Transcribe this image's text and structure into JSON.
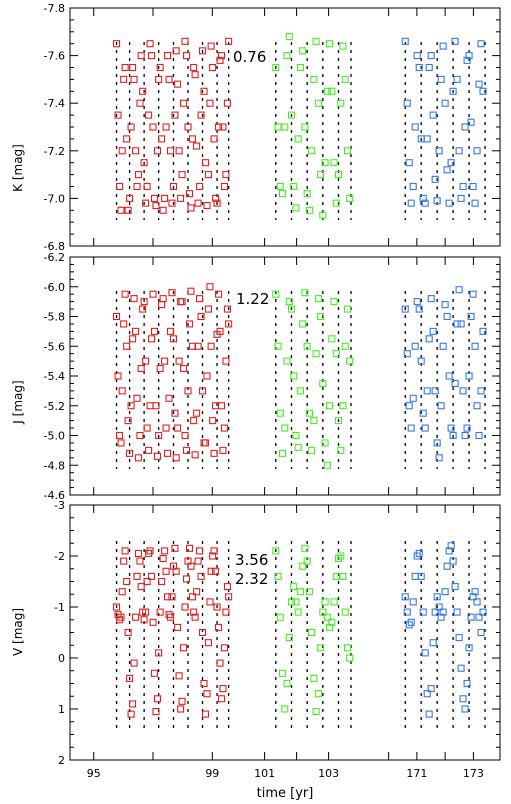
{
  "chart_data": [
    {
      "type": "scatter",
      "ylabel": "K [mag]",
      "ylim": [
        -6.8,
        -7.8
      ],
      "inverted_y": true,
      "yticks": [
        "-7.8",
        "-7.6",
        "-7.4",
        "-7.2",
        "-7.0",
        "-6.8"
      ],
      "annotations": [
        "0.76"
      ],
      "series": [
        {
          "color": "#e02020",
          "x": [
            95.77,
            95.82,
            95.87,
            95.92,
            95.96,
            96.01,
            96.06,
            96.11,
            96.16,
            96.21,
            96.26,
            96.31,
            96.36,
            96.41,
            96.46,
            96.51,
            96.56,
            96.6,
            96.65,
            96.7,
            96.75,
            96.8,
            96.85,
            96.9,
            96.95,
            97.0,
            97.05,
            97.1,
            97.15,
            97.19,
            97.24,
            97.29,
            97.34,
            97.39,
            97.44,
            97.49,
            97.54,
            97.59,
            97.64,
            97.69,
            97.74,
            97.78,
            97.83,
            97.88,
            97.93,
            97.98,
            98.03,
            98.08,
            98.13,
            98.18,
            98.23,
            98.28,
            98.33,
            98.37,
            98.42,
            98.47,
            98.52,
            98.57,
            98.62,
            98.67,
            98.72,
            98.77,
            98.82,
            98.87,
            98.92,
            98.96,
            99.01,
            99.06,
            99.11,
            99.16,
            99.21,
            99.26,
            99.31,
            99.36,
            99.41,
            99.46,
            99.51,
            99.55
          ],
          "y": [
            -7.65,
            -7.35,
            -7.05,
            -6.95,
            -7.2,
            -7.5,
            -7.55,
            -7.25,
            -6.95,
            -7.0,
            -7.3,
            -7.55,
            -7.5,
            -7.2,
            -7.05,
            -7.1,
            -7.4,
            -7.6,
            -7.45,
            -7.15,
            -6.98,
            -7.05,
            -7.35,
            -7.65,
            -7.6,
            -7.3,
            -7.0,
            -6.97,
            -7.2,
            -7.5,
            -7.55,
            -7.25,
            -6.95,
            -7.0,
            -7.3,
            -7.6,
            -7.5,
            -7.2,
            -6.98,
            -7.05,
            -7.35,
            -7.62,
            -7.48,
            -7.2,
            -7.0,
            -7.1,
            -7.4,
            -7.66,
            -7.6,
            -7.3,
            -7.02,
            -6.96,
            -7.25,
            -7.55,
            -7.52,
            -7.22,
            -6.98,
            -7.05,
            -7.35,
            -7.62,
            -7.45,
            -7.15,
            -6.97,
            -7.1,
            -7.4,
            -7.64,
            -7.55,
            -7.25,
            -7.0,
            -6.98,
            -7.3,
            -7.58,
            -7.6,
            -7.3,
            -7.05,
            -7.1,
            -7.4,
            -7.66
          ]
        },
        {
          "color": "#44ee22",
          "x": [
            101.35,
            101.42,
            101.49,
            101.56,
            101.63,
            101.7,
            101.77,
            101.84,
            101.91,
            101.98,
            102.05,
            102.12,
            102.19,
            102.26,
            102.33,
            102.4,
            102.47,
            102.54,
            102.61,
            102.68,
            102.75,
            102.82,
            102.89,
            102.96,
            103.03,
            103.1,
            103.17,
            103.24,
            103.31,
            103.38,
            103.45,
            103.52,
            103.59,
            103.66
          ],
          "y": [
            -7.55,
            -7.3,
            -7.05,
            -7.02,
            -7.3,
            -7.6,
            -7.68,
            -7.35,
            -7.05,
            -6.96,
            -7.25,
            -7.55,
            -7.62,
            -7.3,
            -7.02,
            -6.95,
            -7.2,
            -7.5,
            -7.66,
            -7.4,
            -7.1,
            -6.93,
            -7.15,
            -7.45,
            -7.65,
            -7.45,
            -7.15,
            -6.98,
            -7.1,
            -7.4,
            -7.64,
            -7.5,
            -7.2,
            -7.0
          ]
        },
        {
          "color": "#3377ee",
          "x": [
            105.65,
            105.71,
            105.77,
            105.83,
            105.89,
            105.95,
            106.01,
            106.07,
            106.13,
            106.19,
            106.25,
            106.31,
            106.37,
            106.43,
            106.49,
            106.55,
            106.61,
            106.67,
            106.73,
            106.79,
            106.85,
            106.91,
            106.97,
            107.03,
            107.09,
            107.15,
            107.21,
            107.27,
            107.33,
            107.39,
            107.45,
            107.51,
            107.57,
            107.63,
            107.69,
            107.75,
            107.81,
            107.87,
            107.93,
            107.99
          ],
          "y": [
            -7.66,
            -7.4,
            -7.15,
            -6.98,
            -7.05,
            -7.3,
            -7.6,
            -7.55,
            -7.25,
            -7.0,
            -6.98,
            -7.25,
            -7.55,
            -7.6,
            -7.35,
            -7.08,
            -6.99,
            -7.2,
            -7.5,
            -7.64,
            -7.4,
            -7.12,
            -6.98,
            -7.15,
            -7.45,
            -7.66,
            -7.5,
            -7.2,
            -7.0,
            -7.05,
            -7.3,
            -7.58,
            -7.6,
            -7.32,
            -7.05,
            -6.98,
            -7.2,
            -7.48,
            -7.65,
            -7.45
          ]
        }
      ]
    },
    {
      "type": "scatter",
      "ylabel": "J [mag]",
      "ylim": [
        -4.6,
        -6.2
      ],
      "inverted_y": true,
      "yticks": [
        "-6.2",
        "-6.0",
        "-5.8",
        "-5.6",
        "-5.4",
        "-5.2",
        "-5.0",
        "-4.8",
        "-4.6"
      ],
      "annotations": [
        "1.22"
      ],
      "series": [
        {
          "color": "#e02020",
          "x": [
            95.77,
            95.82,
            95.87,
            95.92,
            95.96,
            96.01,
            96.06,
            96.11,
            96.16,
            96.21,
            96.26,
            96.31,
            96.36,
            96.41,
            96.46,
            96.51,
            96.56,
            96.6,
            96.65,
            96.7,
            96.75,
            96.8,
            96.85,
            96.9,
            96.95,
            97.0,
            97.05,
            97.1,
            97.15,
            97.19,
            97.24,
            97.29,
            97.34,
            97.39,
            97.44,
            97.49,
            97.54,
            97.59,
            97.64,
            97.69,
            97.74,
            97.78,
            97.83,
            97.88,
            97.93,
            97.98,
            98.03,
            98.08,
            98.13,
            98.18,
            98.23,
            98.28,
            98.33,
            98.37,
            98.42,
            98.47,
            98.52,
            98.57,
            98.62,
            98.67,
            98.72,
            98.77,
            98.82,
            98.87,
            98.92,
            98.96,
            99.01,
            99.06,
            99.11,
            99.16,
            99.21,
            99.26,
            99.31,
            99.36,
            99.41,
            99.46,
            99.51,
            99.55
          ],
          "y": [
            -5.8,
            -5.4,
            -5.0,
            -4.95,
            -5.3,
            -5.75,
            -5.95,
            -5.6,
            -5.1,
            -4.88,
            -5.2,
            -5.65,
            -5.92,
            -5.7,
            -5.25,
            -4.85,
            -5.0,
            -5.45,
            -5.85,
            -5.9,
            -5.5,
            -5.05,
            -4.9,
            -5.2,
            -5.65,
            -5.95,
            -5.7,
            -5.2,
            -4.86,
            -5.0,
            -5.45,
            -5.88,
            -5.92,
            -5.5,
            -5.05,
            -4.88,
            -5.25,
            -5.7,
            -5.96,
            -5.65,
            -5.15,
            -4.85,
            -5.05,
            -5.5,
            -5.9,
            -5.9,
            -5.45,
            -5.0,
            -4.9,
            -5.3,
            -5.75,
            -5.97,
            -5.6,
            -5.1,
            -4.87,
            -5.15,
            -5.6,
            -5.92,
            -5.8,
            -5.3,
            -4.95,
            -4.95,
            -5.4,
            -5.85,
            -6.0,
            -5.6,
            -5.1,
            -4.88,
            -5.2,
            -5.68,
            -5.95,
            -5.7,
            -5.2,
            -4.9,
            -5.05,
            -5.5,
            -5.85,
            -5.75
          ]
        },
        {
          "color": "#44ee22",
          "x": [
            101.35,
            101.42,
            101.49,
            101.56,
            101.63,
            101.7,
            101.77,
            101.84,
            101.91,
            101.98,
            102.05,
            102.12,
            102.19,
            102.26,
            102.33,
            102.4,
            102.47,
            102.54,
            102.61,
            102.68,
            102.75,
            102.82,
            102.89,
            102.96,
            103.03,
            103.1,
            103.17,
            103.24,
            103.31,
            103.38,
            103.45,
            103.52,
            103.59,
            103.66
          ],
          "y": [
            -5.95,
            -5.6,
            -5.15,
            -4.88,
            -5.05,
            -5.5,
            -5.9,
            -5.85,
            -5.4,
            -5.0,
            -4.92,
            -5.3,
            -5.75,
            -5.96,
            -5.6,
            -5.15,
            -4.9,
            -5.1,
            -5.55,
            -5.92,
            -5.8,
            -5.35,
            -4.95,
            -4.8,
            -5.2,
            -5.65,
            -5.9,
            -5.55,
            -5.1,
            -4.9,
            -5.2,
            -5.6,
            -5.85,
            -5.5
          ]
        },
        {
          "color": "#3377ee",
          "x": [
            105.65,
            105.71,
            105.77,
            105.83,
            105.89,
            105.95,
            106.01,
            106.07,
            106.13,
            106.19,
            106.25,
            106.31,
            106.37,
            106.43,
            106.49,
            106.55,
            106.61,
            106.67,
            106.73,
            106.79,
            106.85,
            106.91,
            106.97,
            107.03,
            107.09,
            107.15,
            107.21,
            107.27,
            107.33,
            107.39,
            107.45,
            107.51,
            107.57,
            107.63,
            107.69,
            107.75,
            107.81,
            107.87,
            107.93,
            107.99
          ],
          "y": [
            -5.85,
            -5.55,
            -5.2,
            -5.05,
            -5.25,
            -5.6,
            -5.9,
            -5.85,
            -5.5,
            -5.15,
            -5.05,
            -5.3,
            -5.65,
            -5.92,
            -5.7,
            -5.3,
            -4.95,
            -4.85,
            -5.2,
            -5.6,
            -5.88,
            -5.8,
            -5.4,
            -5.05,
            -5.0,
            -5.35,
            -5.75,
            -5.98,
            -5.75,
            -5.3,
            -5.0,
            -5.05,
            -5.4,
            -5.8,
            -5.95,
            -5.6,
            -5.2,
            -5.0,
            -5.3,
            -5.7
          ]
        }
      ]
    },
    {
      "type": "scatter",
      "ylabel": "V [mag]",
      "ylim": [
        2,
        -3
      ],
      "inverted_y": true,
      "yticks": [
        "-3",
        "-2",
        "-1",
        "0",
        "1",
        "2"
      ],
      "annotations": [
        "3.56",
        "2.32"
      ],
      "xticks": [
        "95",
        "99",
        "101",
        "103",
        "171",
        "173"
      ],
      "xlabel": "time [yr]",
      "series": [
        {
          "color": "#e02020",
          "x": [
            95.77,
            95.82,
            95.87,
            95.92,
            95.96,
            96.01,
            96.06,
            96.11,
            96.16,
            96.21,
            96.26,
            96.31,
            96.36,
            96.41,
            96.46,
            96.51,
            96.56,
            96.6,
            96.65,
            96.7,
            96.75,
            96.8,
            96.85,
            96.9,
            96.95,
            97.0,
            97.05,
            97.1,
            97.15,
            97.19,
            97.24,
            97.29,
            97.34,
            97.39,
            97.44,
            97.49,
            97.54,
            97.59,
            97.64,
            97.69,
            97.74,
            97.78,
            97.83,
            97.88,
            97.93,
            97.98,
            98.03,
            98.08,
            98.13,
            98.18,
            98.23,
            98.28,
            98.33,
            98.37,
            98.42,
            98.47,
            98.52,
            98.57,
            98.62,
            98.67,
            98.72,
            98.77,
            98.82,
            98.87,
            98.92,
            98.96,
            99.01,
            99.06,
            99.11,
            99.16,
            99.21,
            99.26,
            99.31,
            99.36,
            99.41,
            99.46,
            99.51,
            99.55
          ],
          "y": [
            -1.0,
            -0.85,
            -0.75,
            -0.8,
            -1.3,
            -1.9,
            -2.1,
            -1.5,
            -0.5,
            0.4,
            1.1,
            0.9,
            0.1,
            -0.8,
            -1.6,
            -2.05,
            -1.9,
            -1.4,
            -0.9,
            -0.75,
            -0.9,
            -1.5,
            -2.05,
            -2.1,
            -1.6,
            -0.7,
            0.3,
            1.05,
            0.8,
            -0.1,
            -0.9,
            -1.5,
            -1.95,
            -2.1,
            -1.7,
            -1.2,
            -0.85,
            -0.8,
            -1.2,
            -1.8,
            -2.15,
            -1.7,
            -0.6,
            0.35,
            1.0,
            0.85,
            -0.2,
            -1.0,
            -1.55,
            -1.9,
            -2.15,
            -1.8,
            -1.2,
            -0.9,
            -0.8,
            -1.3,
            -1.9,
            -2.1,
            -1.6,
            -0.5,
            0.5,
            1.1,
            0.7,
            -0.3,
            -1.1,
            -1.7,
            -2.0,
            -2.1,
            -1.7,
            -1.0,
            -0.6,
            0.1,
            0.8,
            0.6,
            -0.2,
            -0.9,
            -1.4,
            -1.2
          ]
        },
        {
          "color": "#44ee22",
          "x": [
            101.35,
            101.42,
            101.49,
            101.56,
            101.63,
            101.7,
            101.77,
            101.84,
            101.91,
            101.98,
            102.05,
            102.12,
            102.19,
            102.26,
            102.33,
            102.4,
            102.47,
            102.54,
            102.61,
            102.68,
            102.75,
            102.82,
            102.89,
            102.96,
            103.03,
            103.1,
            103.17,
            103.24,
            103.31,
            103.38,
            103.45,
            103.52,
            103.59,
            103.66
          ],
          "y": [
            -2.1,
            -1.6,
            -0.8,
            0.3,
            1.0,
            0.5,
            -0.4,
            -1.1,
            -1.4,
            -1.1,
            -0.9,
            -1.3,
            -1.8,
            -2.15,
            -1.9,
            -1.3,
            -0.5,
            0.4,
            1.05,
            0.7,
            -0.2,
            -0.9,
            -1.1,
            -0.8,
            -0.6,
            -0.7,
            -1.1,
            -1.6,
            -1.95,
            -2.0,
            -1.6,
            -0.9,
            -0.2,
            0.0
          ]
        },
        {
          "color": "#3377ee",
          "x": [
            105.65,
            105.71,
            105.77,
            105.83,
            105.89,
            105.95,
            106.01,
            106.07,
            106.13,
            106.19,
            106.25,
            106.31,
            106.37,
            106.43,
            106.49,
            106.55,
            106.61,
            106.67,
            106.73,
            106.79,
            106.85,
            106.91,
            106.97,
            107.03,
            107.09,
            107.15,
            107.21,
            107.27,
            107.33,
            107.39,
            107.45,
            107.51,
            107.57,
            107.63,
            107.69,
            107.75,
            107.81,
            107.87,
            107.93,
            107.99
          ],
          "y": [
            -1.2,
            -0.9,
            -0.65,
            -0.7,
            -1.1,
            -1.6,
            -2.0,
            -2.05,
            -1.6,
            -0.9,
            -0.1,
            0.7,
            1.1,
            0.6,
            -0.3,
            -0.9,
            -1.2,
            -1.0,
            -0.8,
            -0.9,
            -1.3,
            -1.8,
            -2.1,
            -2.2,
            -1.9,
            -1.4,
            -0.9,
            -0.4,
            0.2,
            0.8,
            1.0,
            0.5,
            -0.2,
            -0.8,
            -1.2,
            -1.3,
            -1.1,
            -0.8,
            -0.5,
            -0.9
          ]
        }
      ]
    }
  ]
}
